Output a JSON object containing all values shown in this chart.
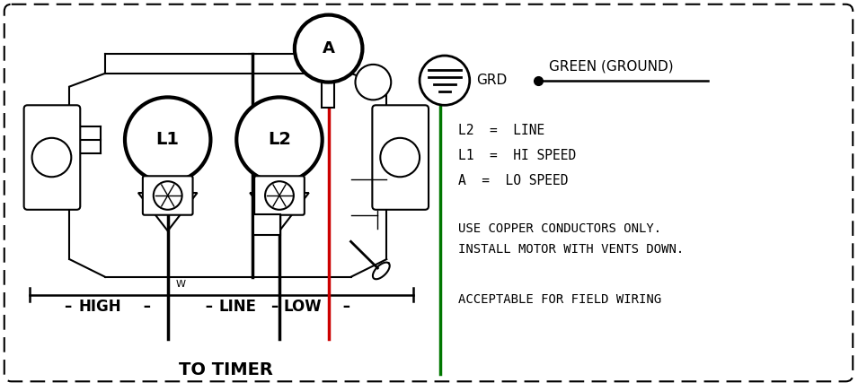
{
  "bg_color": "#ffffff",
  "line_color": "#000000",
  "red_wire_color": "#cc0000",
  "green_wire_color": "#007700",
  "legend_lines": [
    "L2 = LINE",
    "L1 = HI SPEED",
    "A = LO SPEED"
  ],
  "note_lines": [
    "USE COPPER CONDUCTORS ONLY.",
    "INSTALL MOTOR WITH VENTS DOWN."
  ],
  "acceptable_text": "ACCEPTABLE FOR FIELD WIRING",
  "label_grd": "GRD",
  "label_green_ground": "GREEN (GROUND)",
  "title_text": "TO TIMER"
}
